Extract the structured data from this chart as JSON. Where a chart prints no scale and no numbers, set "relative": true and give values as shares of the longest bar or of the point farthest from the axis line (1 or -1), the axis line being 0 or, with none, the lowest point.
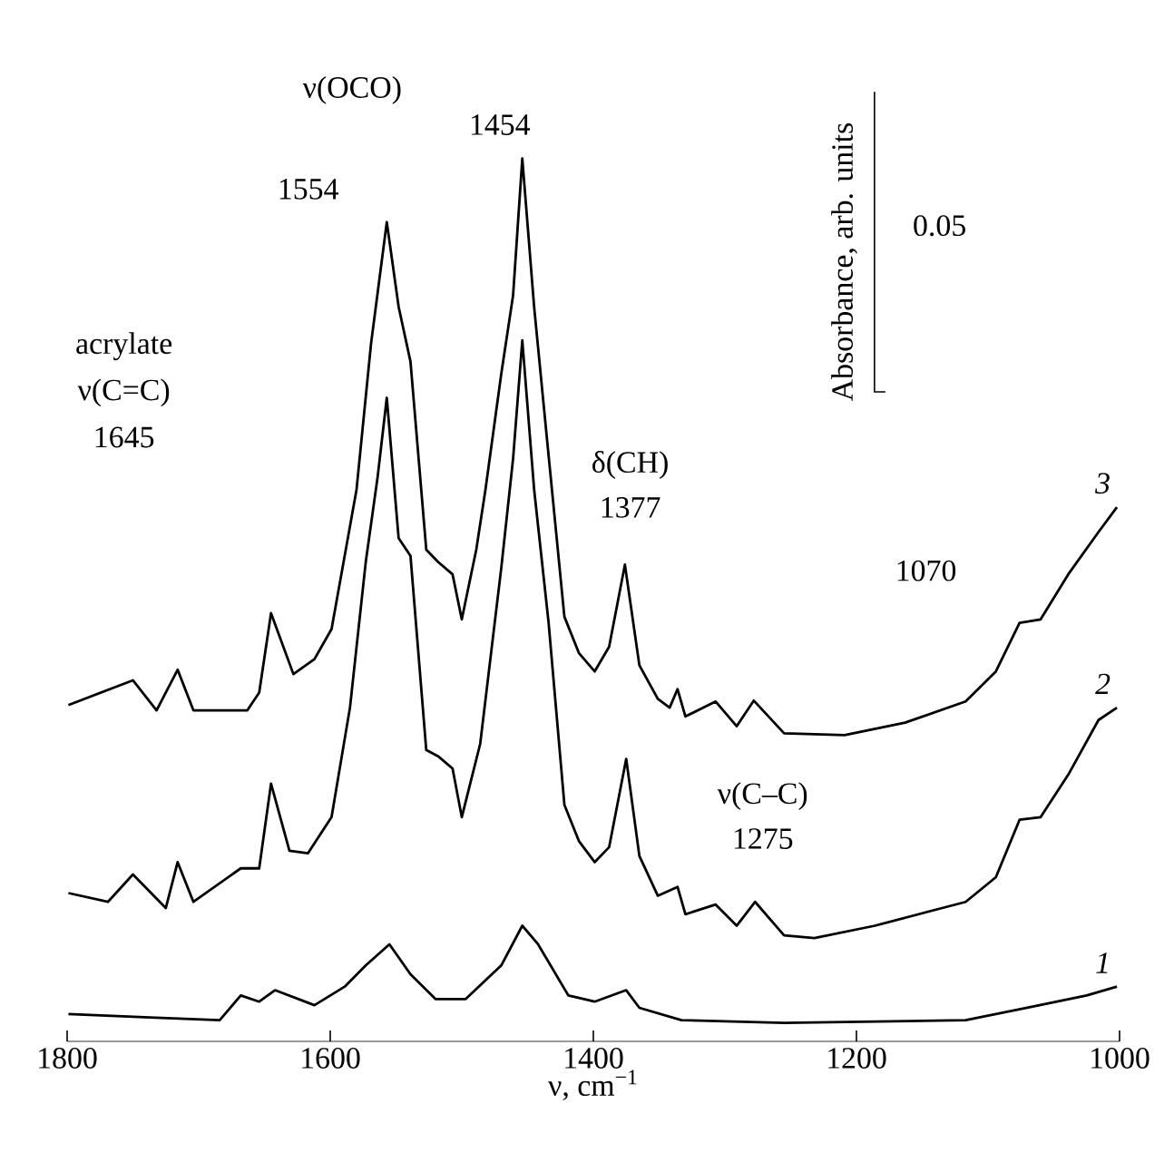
{
  "chart_data": {
    "type": "line",
    "relative": true,
    "xlabel": "ν, cm$^{−1}$",
    "ylabel": "Absorbance, arb. units",
    "xlim": [
      1800,
      1000
    ],
    "xticks": [
      1800,
      1600,
      1400,
      1200,
      1000
    ],
    "tick_labels": "x",
    "marker": "none",
    "line_style": "solid",
    "series": [
      {
        "name": "1",
        "color": "#000000",
        "x": [
          1799,
          1737,
          1684,
          1668,
          1654,
          1642,
          1612,
          1589,
          1573,
          1555,
          1539,
          1520,
          1497,
          1470,
          1454,
          1442,
          1419,
          1399,
          1375,
          1365,
          1333,
          1255,
          1117,
          1071,
          1025,
          1002
        ],
        "values": [
          0.031,
          0.027,
          0.024,
          0.052,
          0.045,
          0.058,
          0.041,
          0.062,
          0.086,
          0.11,
          0.076,
          0.048,
          0.048,
          0.086,
          0.131,
          0.11,
          0.052,
          0.045,
          0.058,
          0.038,
          0.024,
          0.021,
          0.024,
          0.038,
          0.052,
          0.062
        ]
      },
      {
        "name": "2",
        "color": "#000000",
        "x": [
          1799,
          1769,
          1750,
          1725,
          1716,
          1704,
          1668,
          1654,
          1645,
          1631,
          1617,
          1599,
          1585,
          1573,
          1564,
          1557,
          1548,
          1539,
          1527,
          1518,
          1507,
          1500,
          1486,
          1470,
          1461,
          1454,
          1445,
          1434,
          1422,
          1411,
          1399,
          1388,
          1375,
          1365,
          1351,
          1336,
          1330,
          1307,
          1291,
          1277,
          1255,
          1232,
          1186,
          1117,
          1094,
          1076,
          1060,
          1039,
          1016,
          1002
        ],
        "values": [
          0.168,
          0.158,
          0.189,
          0.151,
          0.203,
          0.158,
          0.196,
          0.196,
          0.292,
          0.216,
          0.213,
          0.254,
          0.378,
          0.543,
          0.639,
          0.729,
          0.57,
          0.55,
          0.33,
          0.323,
          0.309,
          0.254,
          0.337,
          0.536,
          0.66,
          0.794,
          0.625,
          0.474,
          0.268,
          0.227,
          0.203,
          0.22,
          0.32,
          0.21,
          0.165,
          0.175,
          0.144,
          0.155,
          0.131,
          0.158,
          0.12,
          0.117,
          0.131,
          0.158,
          0.186,
          0.251,
          0.254,
          0.302,
          0.364,
          0.378
        ]
      },
      {
        "name": "3",
        "color": "#000000",
        "x": [
          1799,
          1750,
          1732,
          1716,
          1704,
          1663,
          1654,
          1645,
          1628,
          1612,
          1599,
          1580,
          1569,
          1563,
          1557,
          1548,
          1539,
          1527,
          1518,
          1507,
          1500,
          1489,
          1482,
          1470,
          1461,
          1454,
          1445,
          1436,
          1422,
          1411,
          1399,
          1388,
          1376,
          1365,
          1351,
          1342,
          1336,
          1330,
          1307,
          1291,
          1278,
          1255,
          1209,
          1163,
          1117,
          1094,
          1076,
          1060,
          1039,
          1016,
          1002
        ],
        "values": [
          0.381,
          0.409,
          0.375,
          0.421,
          0.375,
          0.375,
          0.395,
          0.485,
          0.416,
          0.433,
          0.467,
          0.625,
          0.79,
          0.859,
          0.928,
          0.832,
          0.77,
          0.557,
          0.543,
          0.529,
          0.478,
          0.557,
          0.625,
          0.756,
          0.845,
          1.0,
          0.832,
          0.694,
          0.481,
          0.44,
          0.419,
          0.447,
          0.54,
          0.426,
          0.388,
          0.378,
          0.399,
          0.368,
          0.385,
          0.357,
          0.386,
          0.349,
          0.347,
          0.361,
          0.385,
          0.419,
          0.474,
          0.478,
          0.529,
          0.577,
          0.605
        ]
      }
    ],
    "annotations": [
      "ν(OCO)",
      "1554",
      "1454",
      "acrylate",
      "ν(C=C)",
      "1645",
      "δ(CH)",
      "1377",
      "1070",
      "ν(C–C)",
      "1275",
      "0.05"
    ]
  }
}
